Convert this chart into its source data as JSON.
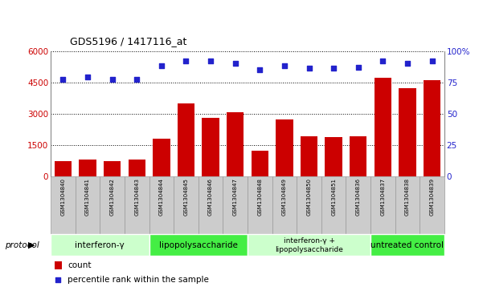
{
  "title": "GDS5196 / 1417116_at",
  "samples": [
    "GSM1304840",
    "GSM1304841",
    "GSM1304842",
    "GSM1304843",
    "GSM1304844",
    "GSM1304845",
    "GSM1304846",
    "GSM1304847",
    "GSM1304848",
    "GSM1304849",
    "GSM1304850",
    "GSM1304851",
    "GSM1304836",
    "GSM1304837",
    "GSM1304838",
    "GSM1304839"
  ],
  "counts": [
    700,
    800,
    700,
    780,
    1800,
    3500,
    2800,
    3050,
    1200,
    2700,
    1900,
    1850,
    1900,
    4700,
    4200,
    4600
  ],
  "percentile_ranks": [
    77,
    79,
    77,
    77,
    88,
    92,
    92,
    90,
    85,
    88,
    86,
    86,
    87,
    92,
    90,
    92
  ],
  "bar_color": "#cc0000",
  "dot_color": "#2222cc",
  "left_yticks": [
    0,
    1500,
    3000,
    4500,
    6000
  ],
  "right_yticks": [
    0,
    25,
    50,
    75,
    100
  ],
  "ylim_left": [
    0,
    6000
  ],
  "ylim_right": [
    0,
    100
  ],
  "groups": [
    {
      "label": "interferon-γ",
      "start": 0,
      "end": 4,
      "color": "#ccffcc"
    },
    {
      "label": "lipopolysaccharide",
      "start": 4,
      "end": 8,
      "color": "#44ee44"
    },
    {
      "label": "interferon-γ +\nlipopolysaccharide",
      "start": 8,
      "end": 13,
      "color": "#ccffcc"
    },
    {
      "label": "untreated control",
      "start": 13,
      "end": 16,
      "color": "#44ee44"
    }
  ],
  "legend_count_label": "count",
  "legend_percentile_label": "percentile rank within the sample",
  "protocol_label": "protocol",
  "tick_label_color_left": "#cc0000",
  "tick_label_color_right": "#2222cc",
  "label_box_color": "#cccccc",
  "label_box_border": "#999999"
}
